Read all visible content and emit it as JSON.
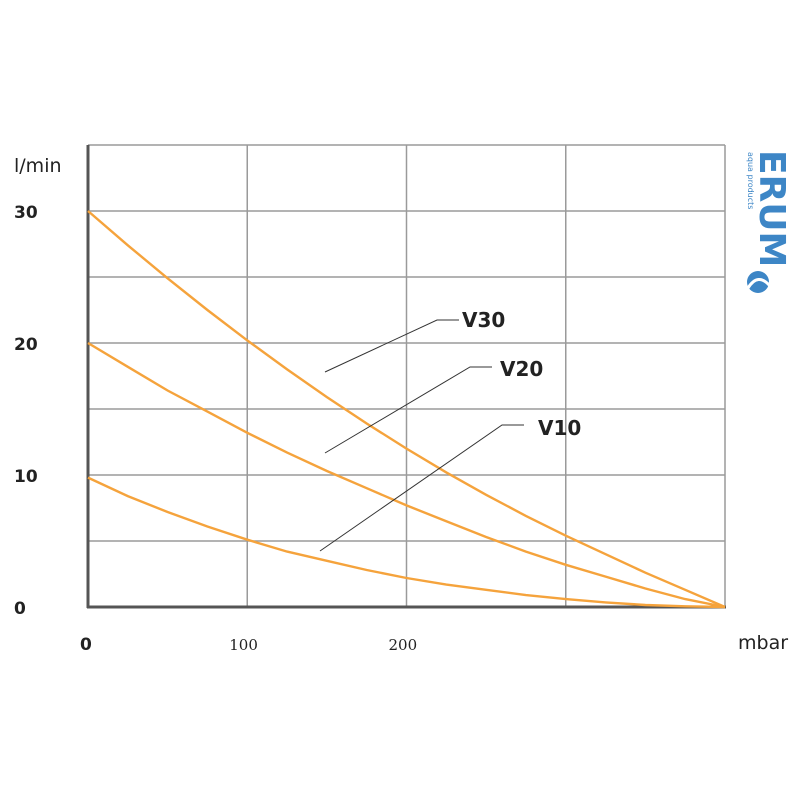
{
  "chart_data": {
    "type": "line",
    "ylabel": "l/min",
    "xlabel": "mbar",
    "yticks": [
      "0",
      "10",
      "20",
      "30"
    ],
    "xticks": [
      "0",
      "100",
      "200"
    ],
    "xlim": [
      0,
      400
    ],
    "ylim": [
      0,
      30
    ],
    "grid": true,
    "series": [
      {
        "name": "V30",
        "x": [
          0,
          25,
          50,
          75,
          100,
          125,
          150,
          175,
          200,
          225,
          250,
          275,
          300,
          325,
          350,
          375,
          400
        ],
        "values": [
          30,
          27.4,
          24.9,
          22.5,
          20.2,
          18.0,
          15.9,
          13.9,
          12.0,
          10.2,
          8.5,
          6.9,
          5.4,
          4.0,
          2.6,
          1.3,
          0
        ]
      },
      {
        "name": "V20",
        "x": [
          0,
          25,
          50,
          75,
          100,
          125,
          150,
          175,
          200,
          225,
          250,
          275,
          300,
          325,
          350,
          375,
          400
        ],
        "values": [
          20,
          18.2,
          16.4,
          14.8,
          13.2,
          11.7,
          10.3,
          9.0,
          7.7,
          6.5,
          5.3,
          4.2,
          3.2,
          2.3,
          1.4,
          0.6,
          0
        ]
      },
      {
        "name": "V10",
        "x": [
          0,
          25,
          50,
          75,
          100,
          125,
          150,
          175,
          200,
          225,
          250,
          275,
          300,
          325,
          350,
          375,
          400
        ],
        "values": [
          9.8,
          8.4,
          7.2,
          6.1,
          5.1,
          4.2,
          3.5,
          2.8,
          2.2,
          1.7,
          1.3,
          0.9,
          0.6,
          0.35,
          0.15,
          0.05,
          0
        ]
      }
    ],
    "series_label_colors": "#f5a33c"
  },
  "logo": {
    "name": "ERUM",
    "tagline": "aqua products",
    "color": "#3d86c6"
  }
}
